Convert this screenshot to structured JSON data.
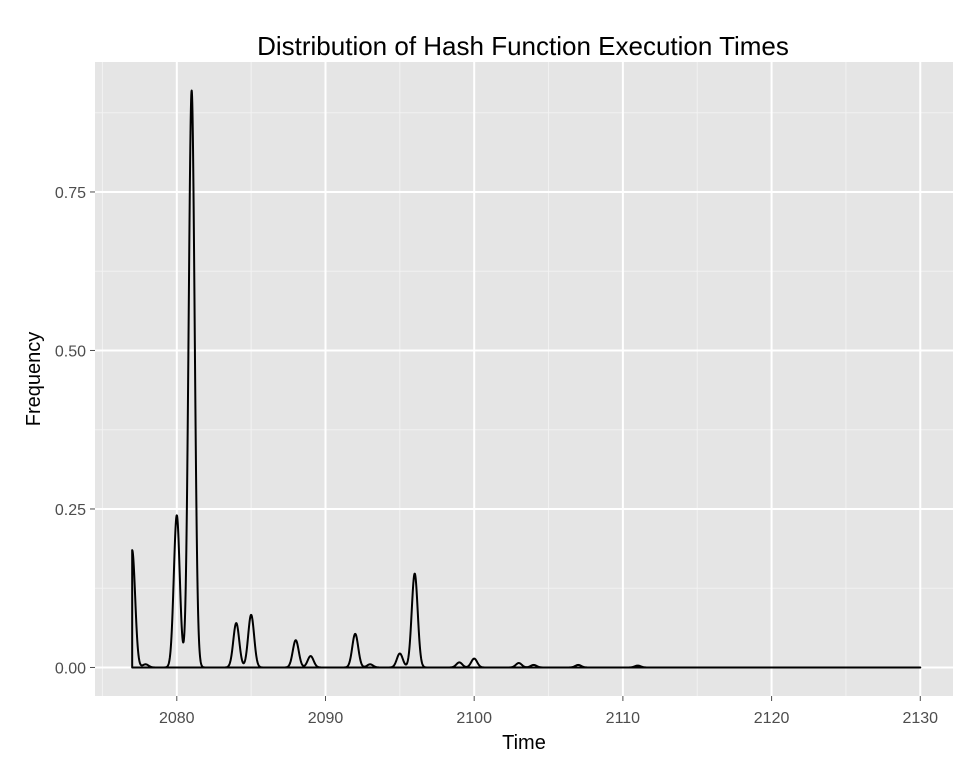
{
  "chart_data": {
    "type": "area",
    "title": "Distribution of Hash Function Execution Times",
    "xlabel": "Time",
    "ylabel": "Frequency",
    "xlim": [
      2074.5,
      2132.2
    ],
    "ylim": [
      -0.045,
      0.955
    ],
    "x_ticks": [
      2080,
      2090,
      2100,
      2110,
      2120,
      2130
    ],
    "x_tick_labels": [
      "2080",
      "2090",
      "2100",
      "2110",
      "2120",
      "2130"
    ],
    "y_ticks": [
      0,
      0.25,
      0.5,
      0.75
    ],
    "y_tick_labels": [
      "0.00",
      "0.25",
      "0.50",
      "0.75"
    ],
    "grid": true,
    "legend": "none",
    "x_range": [
      2077,
      2130
    ],
    "bandwidth": 0.2,
    "peaks": [
      {
        "x": 2077,
        "y": 0.185
      },
      {
        "x": 2077.9,
        "y": 0.005
      },
      {
        "x": 2080,
        "y": 0.24
      },
      {
        "x": 2081,
        "y": 0.91
      },
      {
        "x": 2084,
        "y": 0.07
      },
      {
        "x": 2085,
        "y": 0.083
      },
      {
        "x": 2088,
        "y": 0.043
      },
      {
        "x": 2089,
        "y": 0.018
      },
      {
        "x": 2092,
        "y": 0.053
      },
      {
        "x": 2093,
        "y": 0.005
      },
      {
        "x": 2095,
        "y": 0.022
      },
      {
        "x": 2096,
        "y": 0.148
      },
      {
        "x": 2099,
        "y": 0.008
      },
      {
        "x": 2100,
        "y": 0.014
      },
      {
        "x": 2103,
        "y": 0.007
      },
      {
        "x": 2104,
        "y": 0.004
      },
      {
        "x": 2107,
        "y": 0.004
      },
      {
        "x": 2111,
        "y": 0.003
      }
    ],
    "colors": {
      "panel": "#e5e5e5",
      "grid_major": "#ffffff",
      "grid_minor": "#f2f2f2",
      "line": "#000000",
      "tick": "#4d4d4d"
    }
  }
}
